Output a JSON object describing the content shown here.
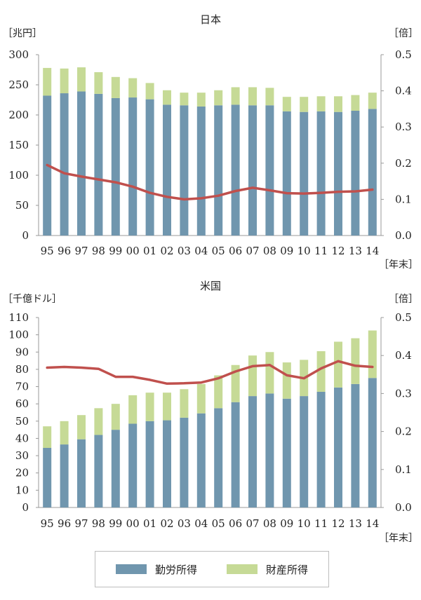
{
  "chart_data": [
    {
      "type": "bar",
      "stacked": true,
      "title": "日本",
      "ylabel_left": "［兆円］",
      "ylabel_right": "［倍］",
      "xunit": "［年末］",
      "ylim": [
        0,
        300
      ],
      "yticks": [
        "0",
        "50",
        "100",
        "150",
        "200",
        "250",
        "300"
      ],
      "y2lim": [
        0,
        0.5
      ],
      "y2ticks": [
        "0.0",
        "0.1",
        "0.2",
        "0.3",
        "0.4",
        "0.5"
      ],
      "categories": [
        "95",
        "96",
        "97",
        "98",
        "99",
        "00",
        "01",
        "02",
        "03",
        "04",
        "05",
        "06",
        "07",
        "08",
        "09",
        "10",
        "11",
        "12",
        "13",
        "14"
      ],
      "series": [
        {
          "name": "勤労所得",
          "values": [
            232,
            236,
            239,
            235,
            228,
            229,
            226,
            217,
            216,
            214,
            216,
            217,
            216,
            216,
            206,
            205,
            206,
            205,
            207,
            210
          ]
        },
        {
          "name": "財産所得",
          "values": [
            46,
            41,
            40,
            36,
            35,
            32,
            27,
            24,
            21,
            23,
            25,
            29,
            30,
            29,
            24,
            25,
            25,
            26,
            26,
            27
          ]
        }
      ],
      "line": {
        "name": "倍率",
        "values": [
          0.195,
          0.172,
          0.163,
          0.155,
          0.147,
          0.135,
          0.118,
          0.107,
          0.1,
          0.103,
          0.11,
          0.123,
          0.132,
          0.125,
          0.117,
          0.116,
          0.118,
          0.121,
          0.122,
          0.127
        ]
      }
    },
    {
      "type": "bar",
      "stacked": true,
      "title": "米国",
      "ylabel_left": "［千億ドル］",
      "ylabel_right": "［倍］",
      "xunit": "［年末］",
      "ylim": [
        0,
        110
      ],
      "yticks": [
        "0",
        "10",
        "20",
        "30",
        "40",
        "50",
        "60",
        "70",
        "80",
        "90",
        "100",
        "110"
      ],
      "y2lim": [
        0,
        0.5
      ],
      "y2ticks": [
        "0.0",
        "0.1",
        "0.2",
        "0.3",
        "0.4",
        "0.5"
      ],
      "categories": [
        "95",
        "96",
        "97",
        "98",
        "99",
        "00",
        "01",
        "02",
        "03",
        "04",
        "05",
        "06",
        "07",
        "08",
        "09",
        "10",
        "11",
        "12",
        "13",
        "14"
      ],
      "series": [
        {
          "name": "勤労所得",
          "values": [
            34.5,
            36.5,
            39.5,
            42.0,
            45.0,
            48.5,
            50.0,
            50.5,
            52.0,
            54.5,
            57.5,
            61.0,
            64.5,
            66.0,
            63.0,
            64.5,
            67.0,
            69.5,
            71.5,
            75.0
          ]
        },
        {
          "name": "財産所得",
          "values": [
            12.5,
            13.5,
            14.0,
            15.5,
            15.0,
            16.5,
            16.5,
            16.0,
            16.5,
            17.0,
            19.0,
            21.5,
            23.5,
            24.0,
            21.0,
            21.0,
            23.5,
            26.5,
            26.5,
            27.5
          ]
        }
      ],
      "line": {
        "name": "倍率",
        "values": [
          0.368,
          0.37,
          0.368,
          0.365,
          0.344,
          0.344,
          0.336,
          0.326,
          0.327,
          0.329,
          0.34,
          0.358,
          0.372,
          0.375,
          0.348,
          0.34,
          0.366,
          0.385,
          0.373,
          0.37
        ]
      }
    }
  ],
  "legend": {
    "items": [
      {
        "label": "勤労所得",
        "color": "#7096ae"
      },
      {
        "label": "財産所得",
        "color": "#c6da96"
      }
    ]
  },
  "colors": {
    "bar1": "#7096ae",
    "bar2": "#c6da96",
    "line": "#c0504d",
    "axis": "#999999",
    "text": "#222222"
  }
}
